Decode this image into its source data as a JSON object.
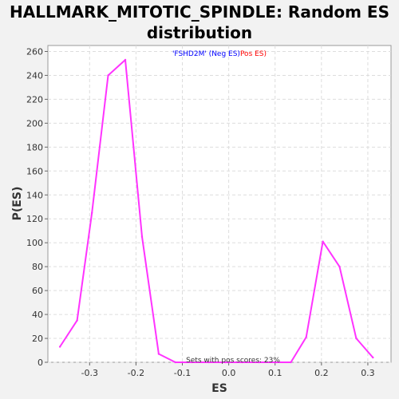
{
  "chart_data": {
    "type": "line",
    "title_line1": "HALLMARK_MITOTIC_SPINDLE: Random ES",
    "title_line2": "distribution",
    "xlabel": "ES",
    "ylabel": "P(ES)",
    "xlim": [
      -0.39,
      0.35
    ],
    "ylim": [
      0,
      265
    ],
    "xticks": [
      -0.3,
      -0.2,
      -0.1,
      0.0,
      0.1,
      0.2,
      0.3
    ],
    "xtick_labels": [
      "-0.3",
      "-0.2",
      "-0.1",
      "0.0",
      "0.1",
      "0.2",
      "0.3"
    ],
    "yticks": [
      0,
      20,
      40,
      60,
      80,
      100,
      120,
      140,
      160,
      180,
      200,
      220,
      240,
      260
    ],
    "ytick_labels": [
      "0",
      "20",
      "40",
      "60",
      "80",
      "100",
      "120",
      "140",
      "160",
      "180",
      "200",
      "220",
      "240",
      "260"
    ],
    "grid": true,
    "legend": {
      "part1": "'FSHD2M' (Neg ES)",
      "part2": "Pos ES)",
      "color1": "#0000ff",
      "color2": "#ff0000",
      "placement": "top-center"
    },
    "annotation": "Sets with pos scores: 23%",
    "series": [
      {
        "color": "#ff33ff",
        "x": [
          -0.364,
          -0.327,
          -0.295,
          -0.26,
          -0.223,
          -0.187,
          -0.151,
          -0.115,
          -0.079,
          -0.043,
          -0.007,
          0.029,
          0.065,
          0.101,
          0.134,
          0.167,
          0.203,
          0.239,
          0.275,
          0.311
        ],
        "y": [
          13,
          35,
          125,
          240,
          253,
          105,
          7,
          0,
          0,
          0,
          0,
          0,
          0,
          0,
          0,
          21,
          101,
          80,
          20,
          4
        ]
      }
    ]
  }
}
